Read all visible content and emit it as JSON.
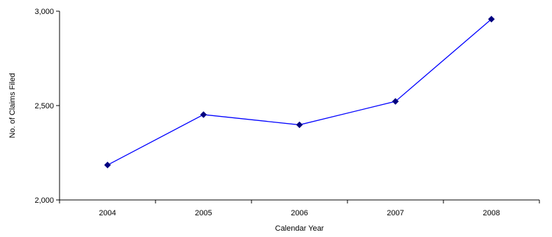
{
  "chart_data": {
    "type": "line",
    "title": "",
    "xlabel": "Calendar Year",
    "ylabel": "No. of Claims Filed",
    "categories": [
      "2004",
      "2005",
      "2006",
      "2007",
      "2008"
    ],
    "series": [
      {
        "values": [
          2185,
          2452,
          2398,
          2522,
          2958
        ]
      }
    ],
    "ylim": [
      2000,
      3000
    ],
    "yticks": [
      2000,
      2500,
      3000
    ],
    "ytick_labels": [
      "2,000",
      "2,500",
      "3,000"
    ],
    "grid": false,
    "legend": "none",
    "colors": {
      "line": "#0000ff",
      "marker": "#000080",
      "axis": "#000000"
    },
    "marker": "diamond"
  }
}
